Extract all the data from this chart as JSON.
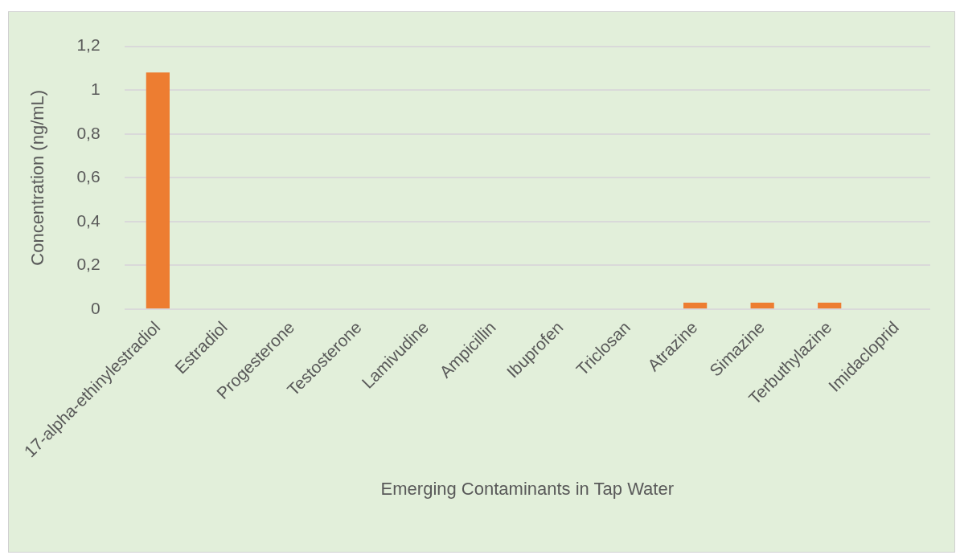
{
  "chart_data": {
    "type": "bar",
    "xlabel": "Emerging Contaminants in Tap Water",
    "ylabel": "Concentration (ng/mL)",
    "categories": [
      "17-alpha-ethinylestradiol",
      "Estradiol",
      "Progesterone",
      "Testosterone",
      "Lamivudine",
      "Ampicillin",
      "Ibuprofen",
      "Triclosan",
      "Atrazine",
      "Simazine",
      "Terbuthylazine",
      "Imidacloprid"
    ],
    "values": [
      1.08,
      0,
      0,
      0,
      0,
      0,
      0,
      0,
      0.03,
      0.03,
      0.03,
      0
    ],
    "color": "#ed7d31",
    "ylim": [
      0,
      1.2
    ],
    "yticks": [
      {
        "value": 0,
        "label": "0"
      },
      {
        "value": 0.2,
        "label": "0,2"
      },
      {
        "value": 0.4,
        "label": "0,4"
      },
      {
        "value": 0.6,
        "label": "0,6"
      },
      {
        "value": 0.8,
        "label": "0,8"
      },
      {
        "value": 1,
        "label": "1"
      },
      {
        "value": 1.2,
        "label": "1,2"
      }
    ],
    "grid": "y"
  }
}
